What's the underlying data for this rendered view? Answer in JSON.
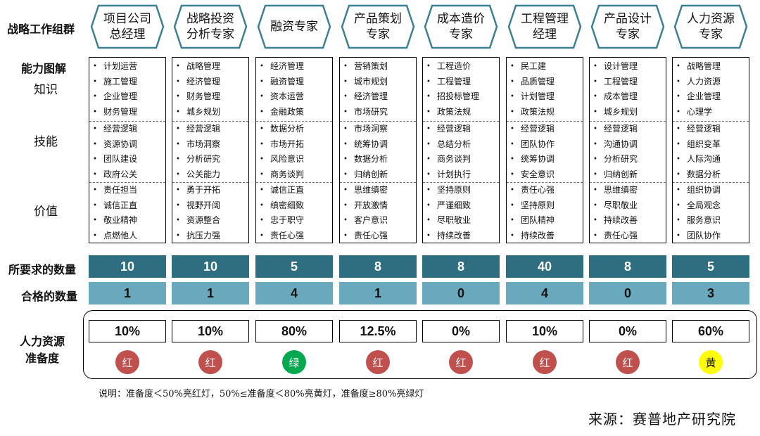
{
  "labels": {
    "roles_row": "战略工作组群",
    "ability_map": "能力图解",
    "knowledge": "知识",
    "skills": "技能",
    "values": "价值",
    "required_count": "所要求的数量",
    "qualified_count": "合格的数量",
    "readiness": "人力资源\n准备度"
  },
  "roles": [
    {
      "name": "项目公司\n总经理",
      "knowledge": [
        "计划运营",
        "施工管理",
        "企业管理",
        "财务管理"
      ],
      "skills": [
        "经营逻辑",
        "资源协调",
        "团队建设",
        "政府公关"
      ],
      "values": [
        "责任担当",
        "诚信正直",
        "敬业精神",
        "点燃他人"
      ],
      "required": "10",
      "qualified": "1",
      "readiness": "10%",
      "light": "红",
      "light_color": "red"
    },
    {
      "name": "战略投资\n分析专家",
      "knowledge": [
        "战略管理",
        "经济管理",
        "财务管理",
        "城乡规划"
      ],
      "skills": [
        "经营逻辑",
        "市场洞察",
        "分析研究",
        "公关能力"
      ],
      "values": [
        "勇于开拓",
        "视野开阔",
        "资源整合",
        "抗压力强"
      ],
      "required": "10",
      "qualified": "1",
      "readiness": "10%",
      "light": "红",
      "light_color": "red"
    },
    {
      "name": "融资专家",
      "knowledge": [
        "经济管理",
        "融资管理",
        "资本运营",
        "金融政策"
      ],
      "skills": [
        "数据分析",
        "市场开拓",
        "风险意识",
        "商务谈判"
      ],
      "values": [
        "诚信正直",
        "缜密细致",
        "忠于职守",
        "责任心强"
      ],
      "required": "5",
      "qualified": "4",
      "readiness": "80%",
      "light": "绿",
      "light_color": "green"
    },
    {
      "name": "产品策划\n专家",
      "knowledge": [
        "营销策划",
        "城市规划",
        "经济管理",
        "市场研究"
      ],
      "skills": [
        "市场洞察",
        "统筹协调",
        "数据分析",
        "归纳创新"
      ],
      "values": [
        "思维缜密",
        "开放激情",
        "客户意识",
        "责任心强"
      ],
      "required": "8",
      "qualified": "1",
      "readiness": "12.5%",
      "light": "红",
      "light_color": "red"
    },
    {
      "name": "成本造价\n专家",
      "knowledge": [
        "工程造价",
        "工程管理",
        "招投标管理",
        "政策法规"
      ],
      "skills": [
        "经营逻辑",
        "总结分析",
        "商务谈判",
        "计划执行"
      ],
      "values": [
        "坚持原则",
        "严谨细致",
        "尽职敬业",
        "持续改善"
      ],
      "required": "8",
      "qualified": "0",
      "readiness": "0%",
      "light": "红",
      "light_color": "red"
    },
    {
      "name": "工程管理\n经理",
      "knowledge": [
        "民工建",
        "品质管理",
        "计划管理",
        "政策法规"
      ],
      "skills": [
        "经营逻辑",
        "团队协作",
        "统筹协调",
        "安全意识"
      ],
      "values": [
        "责任心强",
        "坚持原则",
        "团队精神",
        "持续改善"
      ],
      "required": "40",
      "qualified": "4",
      "readiness": "10%",
      "light": "红",
      "light_color": "red"
    },
    {
      "name": "产品设计\n专家",
      "knowledge": [
        "设计管理",
        "工程管理",
        "成本管理",
        "城乡规划"
      ],
      "skills": [
        "经营逻辑",
        "沟通协调",
        "分析研究",
        "归纳创新"
      ],
      "values": [
        "思维缜密",
        "尽职敬业",
        "持续改善",
        "责任心强"
      ],
      "required": "8",
      "qualified": "0",
      "readiness": "0%",
      "light": "红",
      "light_color": "red"
    },
    {
      "name": "人力资源\n专家",
      "knowledge": [
        "战略管理",
        "人力资源",
        "企业管理",
        "心理学"
      ],
      "skills": [
        "经营逻辑",
        "组织变革",
        "人际沟通",
        "数据分析"
      ],
      "values": [
        "组织协调",
        "全局观念",
        "服务意识",
        "团队协作"
      ],
      "required": "5",
      "qualified": "3",
      "readiness": "60%",
      "light": "黄",
      "light_color": "yellow"
    }
  ],
  "note": "说明：准备度＜50%亮红灯，50%≤准备度＜80%亮黄灯，准备度≥80%亮绿灯",
  "source": "来源：赛普地产研究院",
  "colors": {
    "required_bar": "#2f6d80",
    "qualified_bar": "#6aa9bd",
    "hex_border": "#3d8094",
    "red_light": "#c0504d",
    "green_light": "#00a850",
    "yellow_light": "#ffff00"
  }
}
